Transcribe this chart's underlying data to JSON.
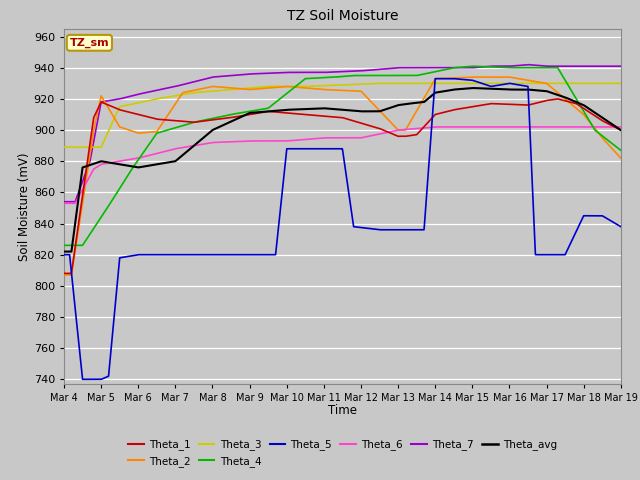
{
  "title": "TZ Soil Moisture",
  "ylabel": "Soil Moisture (mV)",
  "xlabel": "Time",
  "ylim": [
    737,
    965
  ],
  "yticks": [
    740,
    760,
    780,
    800,
    820,
    840,
    860,
    880,
    900,
    920,
    940,
    960
  ],
  "fig_bg": "#c8c8c8",
  "plot_bg": "#c8c8c8",
  "grid_color": "#ffffff",
  "legend_box_label": "TZ_sm",
  "legend_box_color": "#ffffcc",
  "legend_box_border": "#b8960c",
  "lines": {
    "Theta_1": {
      "color": "#cc0000",
      "lw": 1.2
    },
    "Theta_2": {
      "color": "#ff8800",
      "lw": 1.2
    },
    "Theta_3": {
      "color": "#cccc00",
      "lw": 1.2
    },
    "Theta_4": {
      "color": "#00bb00",
      "lw": 1.2
    },
    "Theta_5": {
      "color": "#0000cc",
      "lw": 1.2
    },
    "Theta_6": {
      "color": "#ff44cc",
      "lw": 1.2
    },
    "Theta_7": {
      "color": "#9900cc",
      "lw": 1.2
    },
    "Theta_avg": {
      "color": "#000000",
      "lw": 1.5
    }
  },
  "x_day_labels": [
    "Mar 4",
    "Mar 5",
    "Mar 6",
    "Mar 7",
    "Mar 8",
    "Mar 9",
    "Mar 10",
    "Mar 11",
    "Mar 12",
    "Mar 13",
    "Mar 14",
    "Mar 15",
    "Mar 16",
    "Mar 17",
    "Mar 18",
    "Mar 19"
  ],
  "x_day_values": [
    0,
    1,
    2,
    3,
    4,
    5,
    6,
    7,
    8,
    9,
    10,
    11,
    12,
    13,
    14,
    15
  ]
}
